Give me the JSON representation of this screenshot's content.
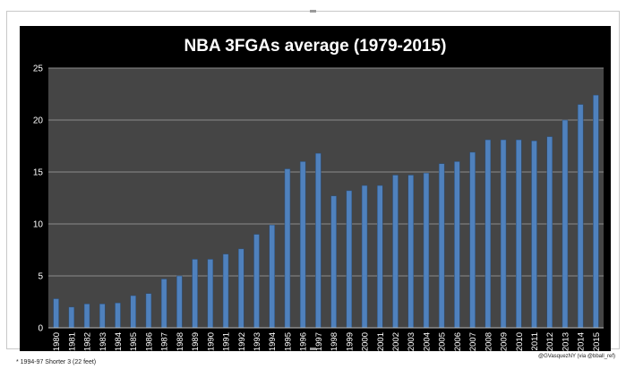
{
  "chart_data": {
    "type": "bar",
    "title": "NBA 3FGAs average (1979-2015)",
    "xlabel": "",
    "ylabel": "",
    "ylim": [
      0,
      25
    ],
    "yticks": [
      "0",
      "5",
      "10",
      "15",
      "20",
      "25"
    ],
    "grid": true,
    "legend": "none",
    "categories": [
      "1980",
      "1981",
      "1982",
      "1983",
      "1984",
      "1985",
      "1986",
      "1987",
      "1988",
      "1989",
      "1990",
      "1991",
      "1992",
      "1993",
      "1994",
      "1995",
      "1996",
      "1997",
      "1998",
      "1999",
      "2000",
      "2001",
      "2002",
      "2003",
      "2004",
      "2005",
      "2006",
      "2007",
      "2008",
      "2009",
      "2010",
      "2011",
      "2012",
      "2013",
      "2014",
      "2015"
    ],
    "values": [
      2.8,
      2.0,
      2.3,
      2.3,
      2.4,
      3.1,
      3.3,
      4.7,
      5.0,
      6.6,
      6.6,
      7.1,
      7.6,
      9.0,
      9.9,
      15.3,
      16.0,
      16.8,
      12.7,
      13.2,
      13.7,
      13.7,
      14.7,
      14.7,
      14.9,
      15.8,
      16.0,
      16.9,
      18.1,
      18.1,
      18.1,
      18.0,
      18.4,
      20.0,
      21.5,
      22.4
    ],
    "colors": {
      "background": "#000000",
      "plot_area": "#454545",
      "bar": "#4f81bd",
      "text": "#ffffff",
      "grid": "#8a8a8a"
    }
  },
  "footnote": "* 1994-97 Shorter 3 (22 feet)",
  "credit": "@GVasquezNY (via @bball_ref)"
}
